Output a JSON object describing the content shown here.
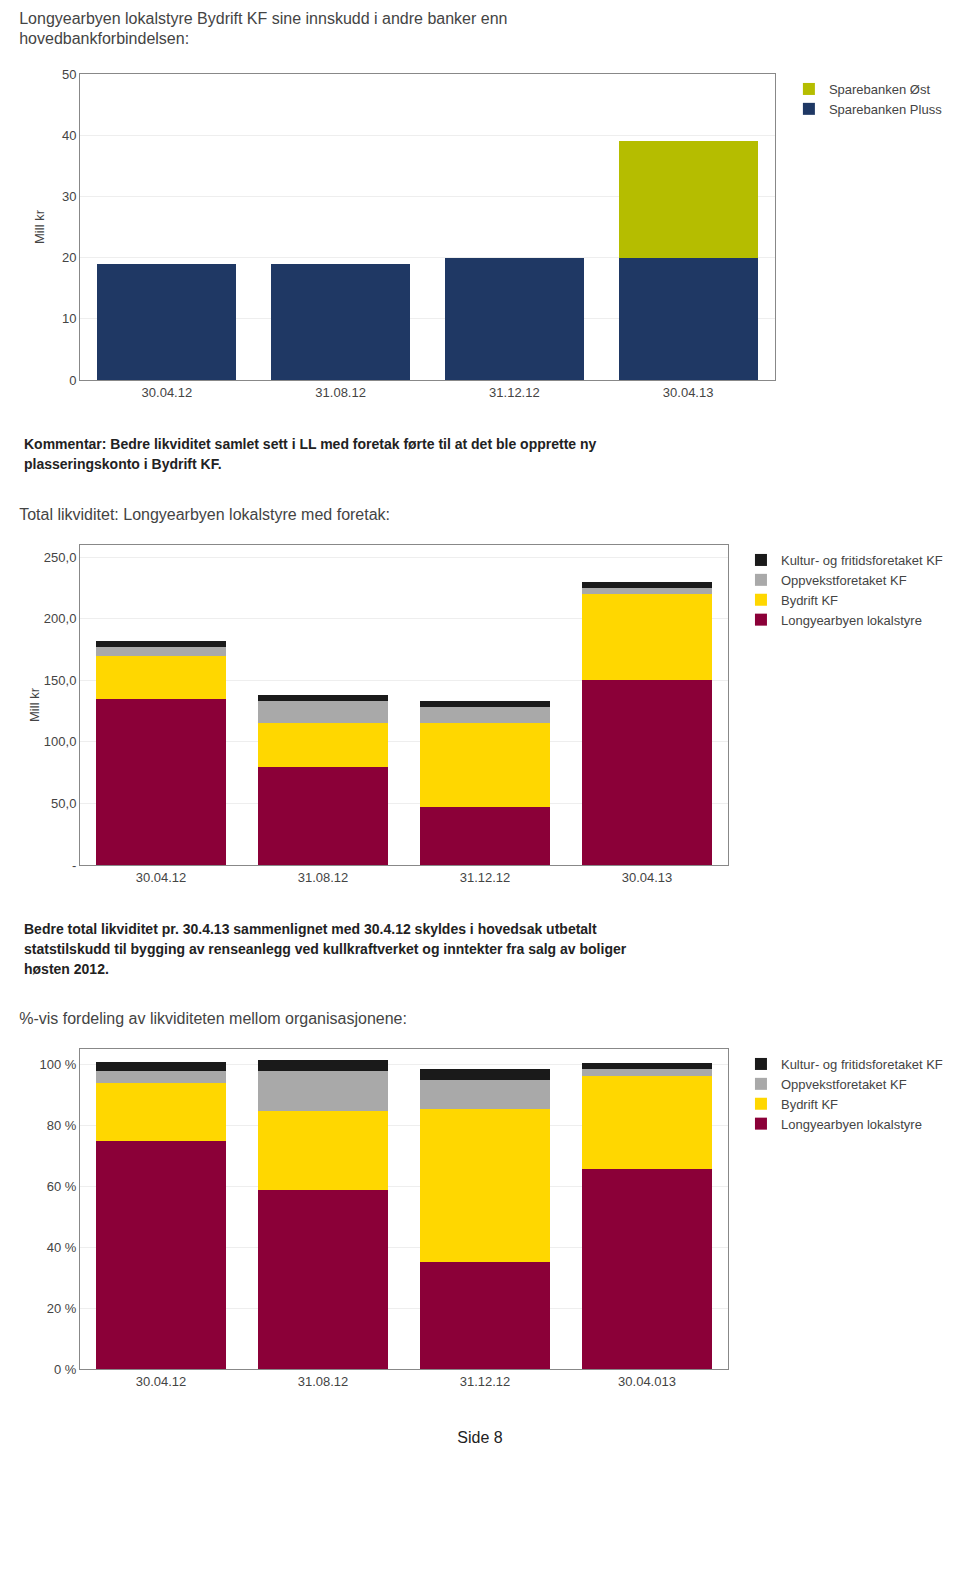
{
  "chart_data": [
    {
      "type": "bar",
      "stacked": true,
      "grid": true,
      "legend": "right",
      "title": "Longyearbyen lokalstyre Bydrift KF sine innskudd i andre banker enn\nhovedbankforbindelsen:",
      "ylabel": "Mill kr",
      "categories": [
        "30.04.12",
        "31.08.12",
        "31.12.12",
        "30.04.13"
      ],
      "series": [
        {
          "name": "Sparebanken Pluss",
          "color": "#1F3864",
          "values": [
            19.0,
            19.0,
            20.0,
            20.0
          ]
        },
        {
          "name": "Sparebanken Øst",
          "color": "#B5BD00",
          "values": [
            0.0,
            0.0,
            0.0,
            19.0
          ]
        }
      ],
      "ylim": [
        0,
        50
      ],
      "yticks": [
        0,
        10,
        20,
        30,
        40,
        50
      ],
      "annotations": [
        "Kommentar: Bedre likviditet samlet sett i LL med foretak førte til at det ble opprette ny\nplasseringskonto i Bydrift KF."
      ]
    },
    {
      "type": "bar",
      "stacked": true,
      "grid": true,
      "legend": "right",
      "title": "Total likviditet: Longyearbyen lokalstyre med foretak:",
      "ylabel": "Mill kr",
      "categories": [
        "30.04.12",
        "31.08.12",
        "31.12.12",
        "30.04.13"
      ],
      "series": [
        {
          "name": "Longyearbyen lokalstyre",
          "color": "#8B0038",
          "values": [
            135.0,
            80.0,
            47.0,
            150.0
          ]
        },
        {
          "name": "Bydrift KF",
          "color": "#FFD700",
          "values": [
            35.0,
            35.0,
            68.0,
            70.0
          ]
        },
        {
          "name": "Oppvekstforetaket KF",
          "color": "#A9A9A9",
          "values": [
            7.0,
            18.0,
            13.0,
            5.0
          ]
        },
        {
          "name": "Kultur- og fritidsforetaket KF",
          "color": "#1a1a1a",
          "values": [
            5.0,
            5.0,
            5.0,
            5.0
          ]
        }
      ],
      "ylim": [
        0,
        260
      ],
      "yticks": [
        {
          "value": 0,
          "label": "-"
        },
        {
          "value": 50,
          "label": "50,0"
        },
        {
          "value": 100,
          "label": "100,0"
        },
        {
          "value": 150,
          "label": "150,0"
        },
        {
          "value": 200,
          "label": "200,0"
        },
        {
          "value": 250,
          "label": "250,0"
        }
      ],
      "annotations": [
        "Bedre total likviditet pr. 30.4.13 sammenlignet med 30.4.12 skyldes i hovedsak utbetalt\nstatstilskudd til bygging av renseanlegg ved kullkraftverket og inntekter fra salg av boliger\nhøsten 2012."
      ]
    },
    {
      "type": "bar",
      "stacked": true,
      "grid": true,
      "legend": "right",
      "title": "%-vis fordeling av likviditeten mellom organisasjonene:",
      "categories": [
        "30.04.12",
        "31.08.12",
        "31.12.12",
        "30.04.013"
      ],
      "series": [
        {
          "name": "Longyearbyen lokalstyre",
          "color": "#8B0038",
          "values": [
            74.7,
            58.8,
            35.2,
            65.5
          ]
        },
        {
          "name": "Bydrift KF",
          "color": "#FFD700",
          "values": [
            19.3,
            25.7,
            50.0,
            30.6
          ]
        },
        {
          "name": "Oppvekstforetaket KF",
          "color": "#A9A9A9",
          "values": [
            3.9,
            13.2,
            9.6,
            2.2
          ]
        },
        {
          "name": "Kultur- og fritidsforetaket KF",
          "color": "#1a1a1a",
          "values": [
            2.8,
            3.7,
            3.7,
            2.2
          ]
        }
      ],
      "ylim": [
        0,
        105
      ],
      "yticks": [
        {
          "value": 0,
          "label": "0 %"
        },
        {
          "value": 20,
          "label": "20 %"
        },
        {
          "value": 40,
          "label": "40 %"
        },
        {
          "value": 60,
          "label": "60 %"
        },
        {
          "value": 80,
          "label": "80 %"
        },
        {
          "value": 100,
          "label": "100 %"
        }
      ]
    }
  ],
  "footer": "Side 8"
}
